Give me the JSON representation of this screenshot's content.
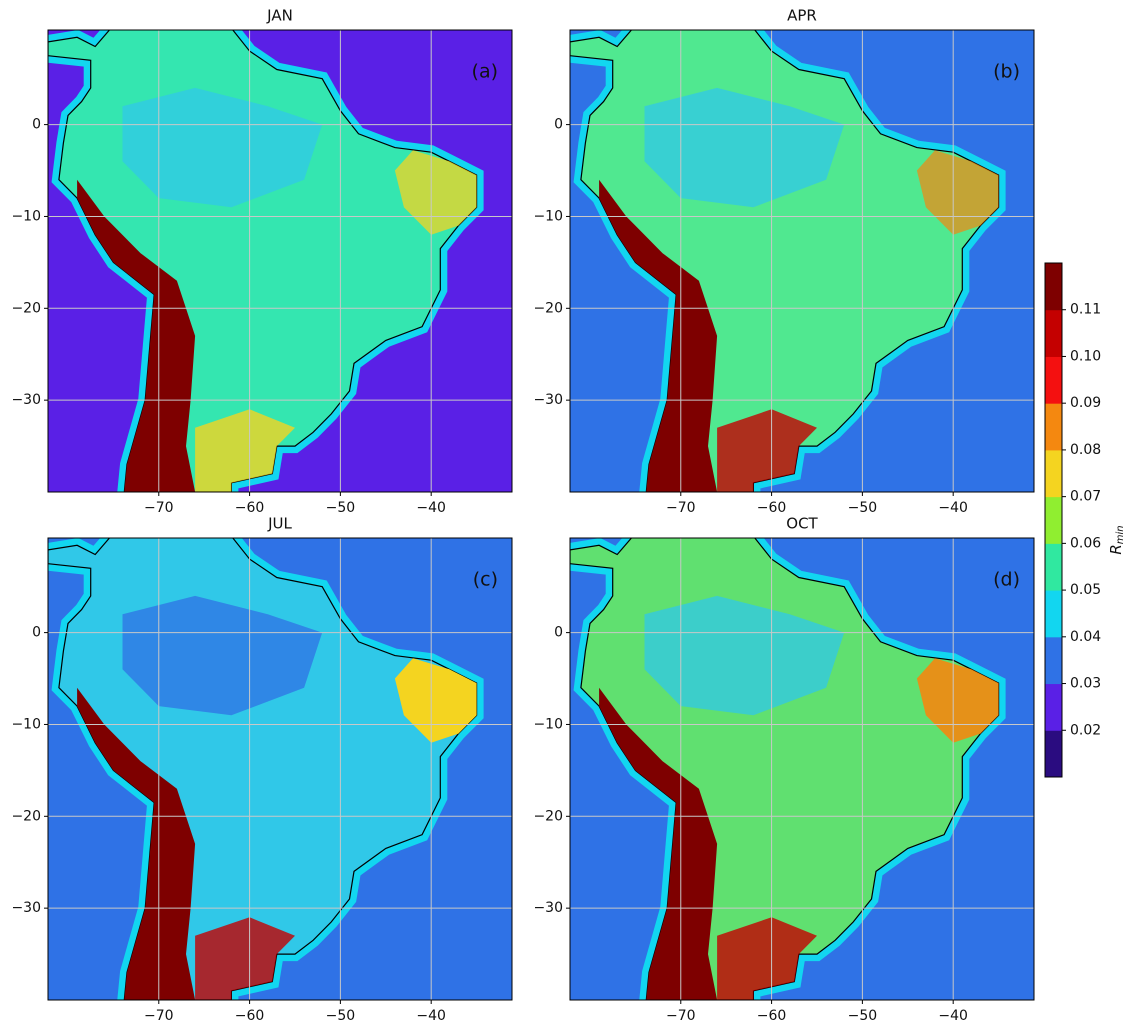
{
  "chart_data": {
    "type": "map",
    "panels": [
      {
        "title": "JAN",
        "label": "(a)",
        "ocean_color": "#5a20e6",
        "land_color": "#34e6b0"
      },
      {
        "title": "APR",
        "label": "(b)",
        "ocean_color": "#2f72e6",
        "land_color": "#50e890"
      },
      {
        "title": "JUL",
        "label": "(c)",
        "ocean_color": "#2f72e6",
        "land_color": "#30c8e8"
      },
      {
        "title": "OCT",
        "label": "(d)",
        "ocean_color": "#2f72e6",
        "land_color": "#60e070"
      }
    ],
    "xlim": [
      -82.2,
      -31.1
    ],
    "ylim": [
      -40,
      10.3
    ],
    "xticks": [
      {
        "value": -70,
        "label": "−70"
      },
      {
        "value": -60,
        "label": "−60"
      },
      {
        "value": -50,
        "label": "−50"
      },
      {
        "value": -40,
        "label": "−40"
      }
    ],
    "yticks": [
      0,
      {
        "value": -10,
        "label": "−10"
      },
      {
        "value": -20,
        "label": "−20"
      },
      {
        "value": -30,
        "label": "−30"
      }
    ],
    "grid": true,
    "colorbar": {
      "clim": [
        0.01,
        0.12
      ],
      "ticks": [
        0.02,
        0.03,
        0.04,
        0.05,
        0.06,
        0.07,
        0.08,
        0.09,
        {
          "value": 0.1,
          "label": "0.10"
        },
        0.11
      ],
      "colors": [
        "#2a0c80",
        "#5a20e6",
        "#2f72e6",
        "#12d6f0",
        "#30e8a0",
        "#90ee30",
        "#f4d420",
        "#f48810",
        "#f41010",
        "#c40000",
        "#7e0000"
      ],
      "label": {
        "base": "R",
        "subscript": "min"
      }
    }
  }
}
